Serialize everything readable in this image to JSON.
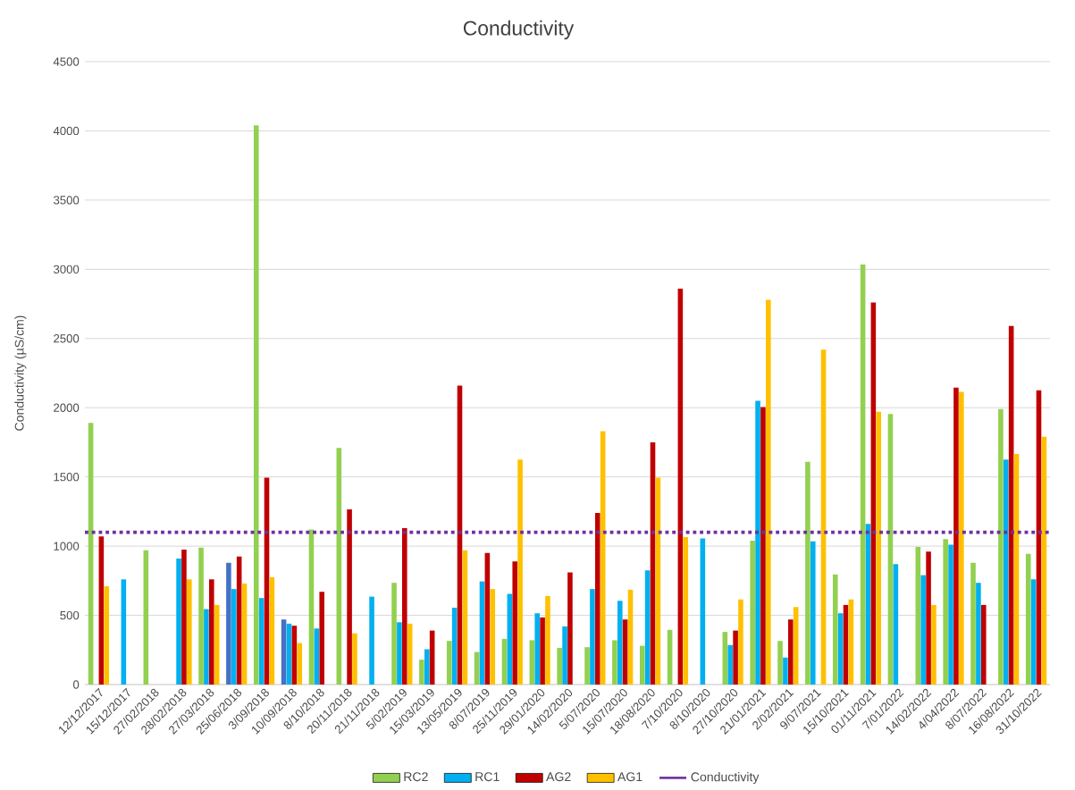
{
  "chart_data": {
    "type": "bar",
    "title": "Conductivity",
    "ylabel": "Conductivity (µS/cm)",
    "categories": [
      "12/12/2017",
      "15/12/2017",
      "27/02/2018",
      "28/02/2018",
      "27/03/2018",
      "25/06/2018",
      "3/09/2018",
      "10/09/2018",
      "8/10/2018",
      "20/11/2018",
      "21/11/2018",
      "5/02/2019",
      "15/03/2019",
      "13/05/2019",
      "8/07/2019",
      "25/11/2019",
      "29/01/2020",
      "14/02/2020",
      "5/07/2020",
      "15/07/2020",
      "18/08/2020",
      "7/10/2020",
      "8/10/2020",
      "27/10/2020",
      "21/01/2021",
      "2/02/2021",
      "9/07/2021",
      "15/10/2021",
      "01/11/2021",
      "7/01/2022",
      "14/02/2022",
      "4/04/2022",
      "8/07/2022",
      "16/08/2022",
      "31/10/2022"
    ],
    "series": [
      {
        "name": "RC2",
        "color": "#92d050",
        "colors": [
          "#92d050",
          "#92d050",
          "#92d050",
          "#92d050",
          "#92d050",
          "#4472c4",
          "#92d050",
          "#4472c4",
          "#92d050",
          "#92d050",
          "#92d050",
          "#92d050",
          "#92d050",
          "#92d050",
          "#92d050",
          "#92d050",
          "#92d050",
          "#92d050",
          "#92d050",
          "#92d050",
          "#92d050",
          "#92d050",
          "#92d050",
          "#92d050",
          "#92d050",
          "#92d050",
          "#92d050",
          "#92d050",
          "#92d050",
          "#92d050",
          "#92d050",
          "#92d050",
          "#92d050",
          "#92d050",
          "#92d050"
        ],
        "values": [
          1890,
          null,
          970,
          null,
          990,
          880,
          4040,
          470,
          1120,
          1710,
          null,
          735,
          180,
          315,
          235,
          330,
          320,
          265,
          270,
          320,
          280,
          395,
          null,
          380,
          1040,
          315,
          1610,
          795,
          3035,
          1955,
          995,
          1050,
          880,
          1990,
          945
        ]
      },
      {
        "name": "RC1",
        "color": "#00b0f0",
        "values": [
          null,
          760,
          null,
          910,
          545,
          690,
          625,
          440,
          405,
          null,
          635,
          450,
          255,
          555,
          745,
          655,
          515,
          420,
          690,
          605,
          825,
          null,
          1055,
          285,
          2050,
          195,
          1035,
          515,
          1160,
          870,
          790,
          1010,
          735,
          1625,
          760
        ]
      },
      {
        "name": "AG2",
        "color": "#c00000",
        "values": [
          1070,
          null,
          null,
          975,
          760,
          925,
          1495,
          425,
          670,
          1265,
          null,
          1130,
          390,
          2160,
          950,
          890,
          485,
          810,
          1240,
          470,
          1750,
          2860,
          null,
          390,
          2005,
          470,
          null,
          575,
          2760,
          null,
          960,
          2145,
          575,
          2590,
          2125
        ]
      },
      {
        "name": "AG1",
        "color": "#ffc000",
        "values": [
          710,
          null,
          null,
          760,
          575,
          730,
          775,
          300,
          null,
          370,
          null,
          440,
          null,
          970,
          690,
          1625,
          640,
          null,
          1830,
          685,
          1495,
          1065,
          null,
          615,
          2780,
          560,
          2420,
          615,
          1970,
          null,
          575,
          2115,
          null,
          1665,
          1790
        ]
      }
    ],
    "ref_lines": [
      {
        "axis": "y",
        "value": 1100,
        "label": "Conductivity",
        "color": "#7030a0",
        "line_style": "dotted"
      }
    ],
    "ylim": [
      0,
      4500
    ],
    "yticks": [
      0,
      500,
      1000,
      1500,
      2000,
      2500,
      3000,
      3500,
      4000,
      4500
    ],
    "grid": "y",
    "legend": "bottom"
  }
}
